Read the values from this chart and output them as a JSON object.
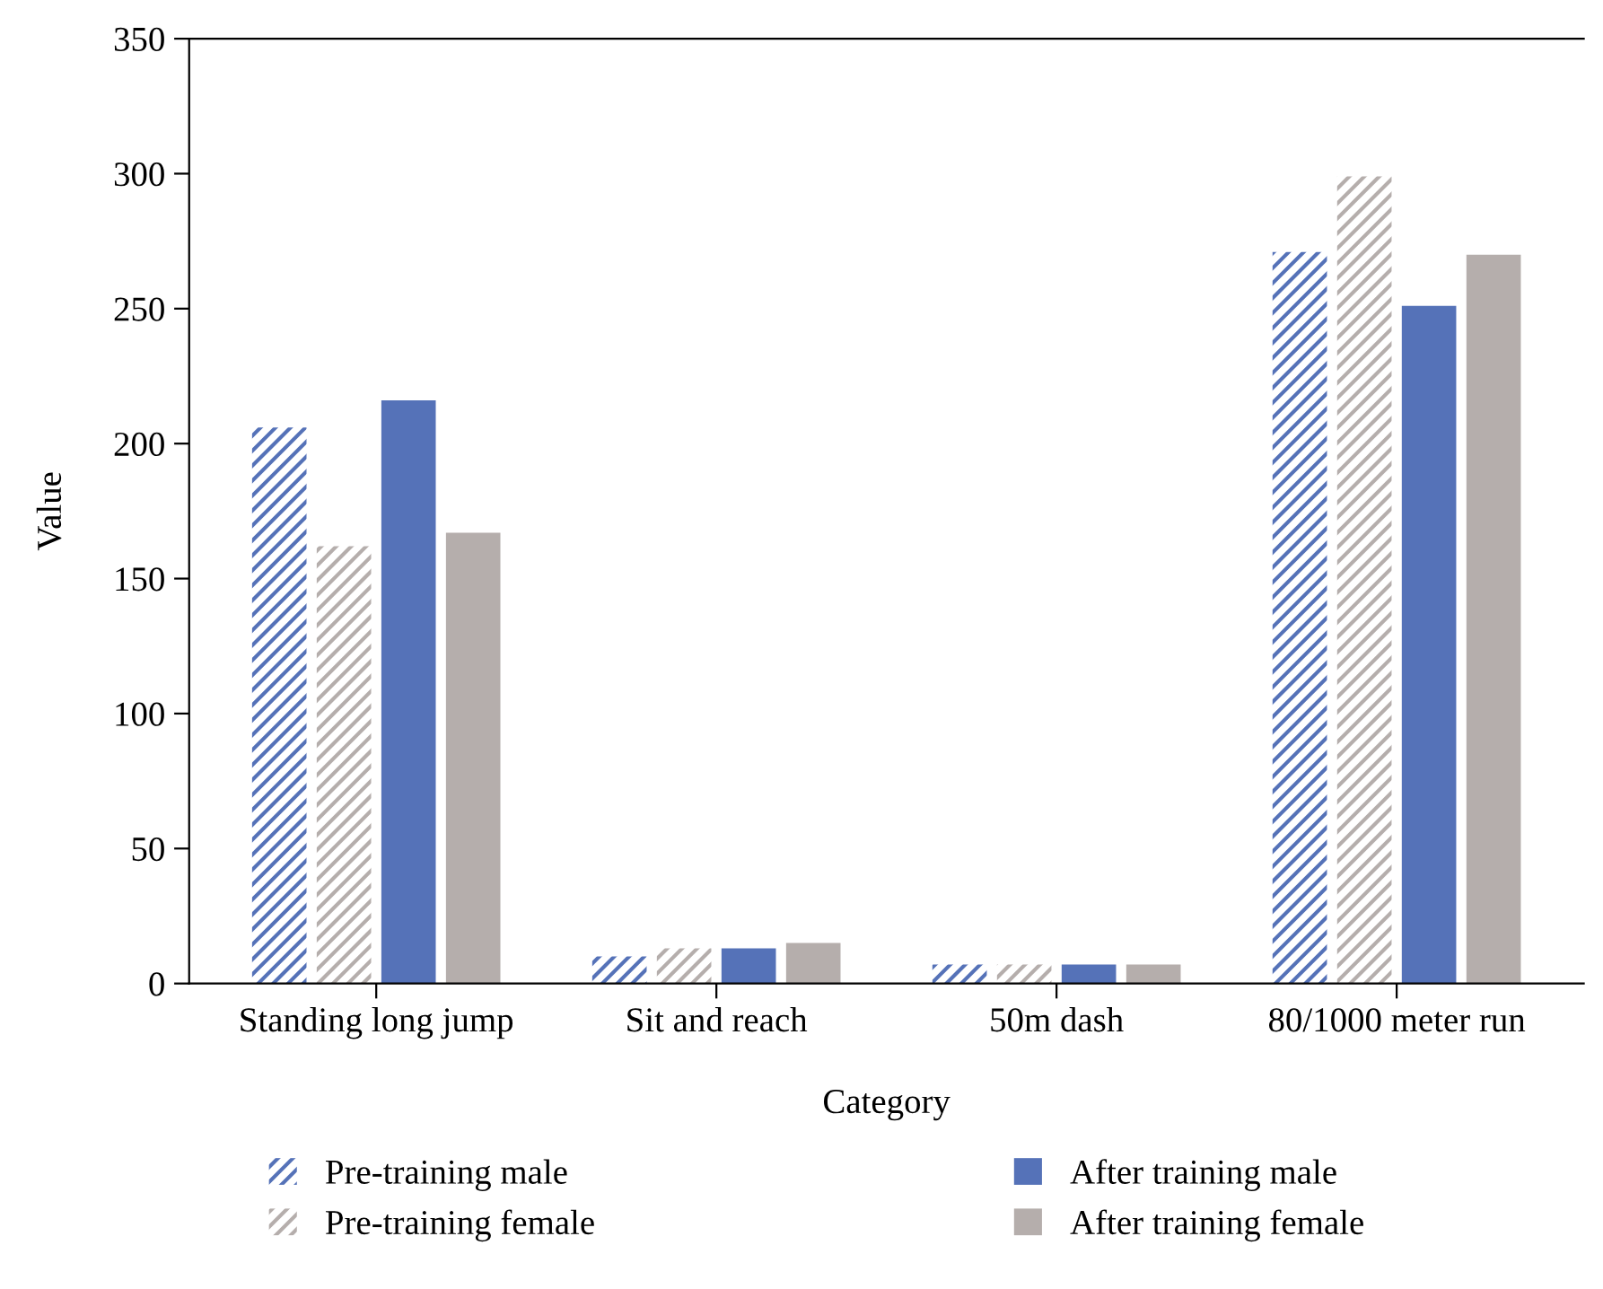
{
  "chart_data": {
    "type": "bar",
    "xlabel": "Category",
    "ylabel": "Value",
    "categories": [
      "Standing long jump",
      "Sit and reach",
      "50m dash",
      "80/1000 meter run"
    ],
    "series": [
      {
        "name": "Pre-training male",
        "color": "#5572b8",
        "values": [
          206,
          10,
          7,
          271
        ]
      },
      {
        "name": "Pre-training female",
        "color": "#b5aeac",
        "values": [
          162,
          13,
          7,
          299
        ]
      },
      {
        "name": "After training male",
        "color": "#5572b8",
        "values": [
          216,
          13,
          7,
          251
        ]
      },
      {
        "name": "After training female",
        "color": "#b5aeac",
        "values": [
          167,
          15,
          7,
          270
        ]
      }
    ],
    "ylim": [
      0,
      350
    ],
    "yticks": [
      0,
      50,
      100,
      150,
      200,
      250,
      300,
      350
    ],
    "grid": false,
    "legend": "bottom"
  }
}
